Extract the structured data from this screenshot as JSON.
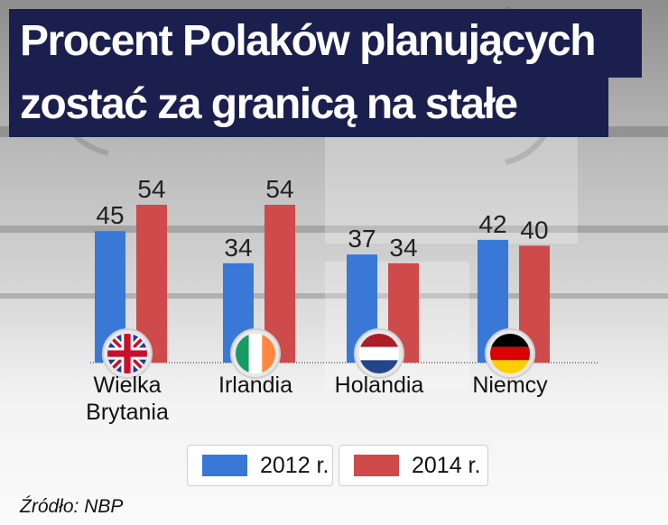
{
  "title": {
    "line1": "Procent Polaków planujących",
    "line2": "zostać za granicą na stałe"
  },
  "source": "Źródło: NBP",
  "colors": {
    "series_2012": "#3a78d8",
    "series_2014": "#cf4a4a",
    "title_bg": "#1a1f4e"
  },
  "chart_data": {
    "type": "bar",
    "title": "Procent Polaków planujących zostać za granicą na stałe",
    "categories": [
      "Wielka Brytania",
      "Irlandia",
      "Holandia",
      "Niemcy"
    ],
    "category_labels": [
      [
        "Wielka",
        "Brytania"
      ],
      [
        "Irlandia"
      ],
      [
        "Holandia"
      ],
      [
        "Niemcy"
      ]
    ],
    "flag_icons": [
      "uk-flag-icon",
      "ireland-flag-icon",
      "netherlands-flag-icon",
      "germany-flag-icon"
    ],
    "series": [
      {
        "name": "2012 r.",
        "values": [
          45,
          34,
          37,
          42
        ],
        "color": "#3a78d8"
      },
      {
        "name": "2014 r.",
        "values": [
          54,
          54,
          34,
          40
        ],
        "color": "#cf4a4a"
      }
    ],
    "data_labels": true,
    "ylim": [
      0,
      54
    ],
    "grid": false,
    "legend_position": "bottom-center",
    "xlabel": "",
    "ylabel": ""
  }
}
